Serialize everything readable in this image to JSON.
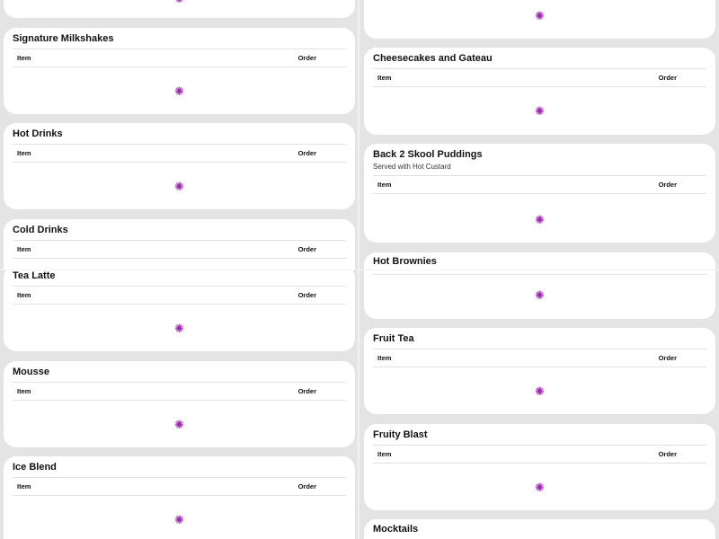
{
  "columns": {
    "item": "Item",
    "order": "Order"
  },
  "spinner_color": "#9c27b0",
  "sections": {
    "milkshakes": {
      "title": "Signature Milkshakes"
    },
    "hot_drinks": {
      "title": "Hot Drinks"
    },
    "cold_drinks": {
      "title": "Cold Drinks"
    },
    "tea_latte": {
      "title": "Tea Latte"
    },
    "mousse": {
      "title": "Mousse"
    },
    "ice_blend": {
      "title": "Ice Blend"
    },
    "cheesecakes": {
      "title": "Cheesecakes and Gateau"
    },
    "puddings": {
      "title": "Back 2 Skool Puddings",
      "subtitle": "Served with Hot Custard"
    },
    "brownies": {
      "title": "Hot Brownies"
    },
    "fruit_tea": {
      "title": "Fruit Tea"
    },
    "fruity_blast": {
      "title": "Fruity Blast"
    },
    "mocktails": {
      "title": "Mocktails"
    }
  }
}
